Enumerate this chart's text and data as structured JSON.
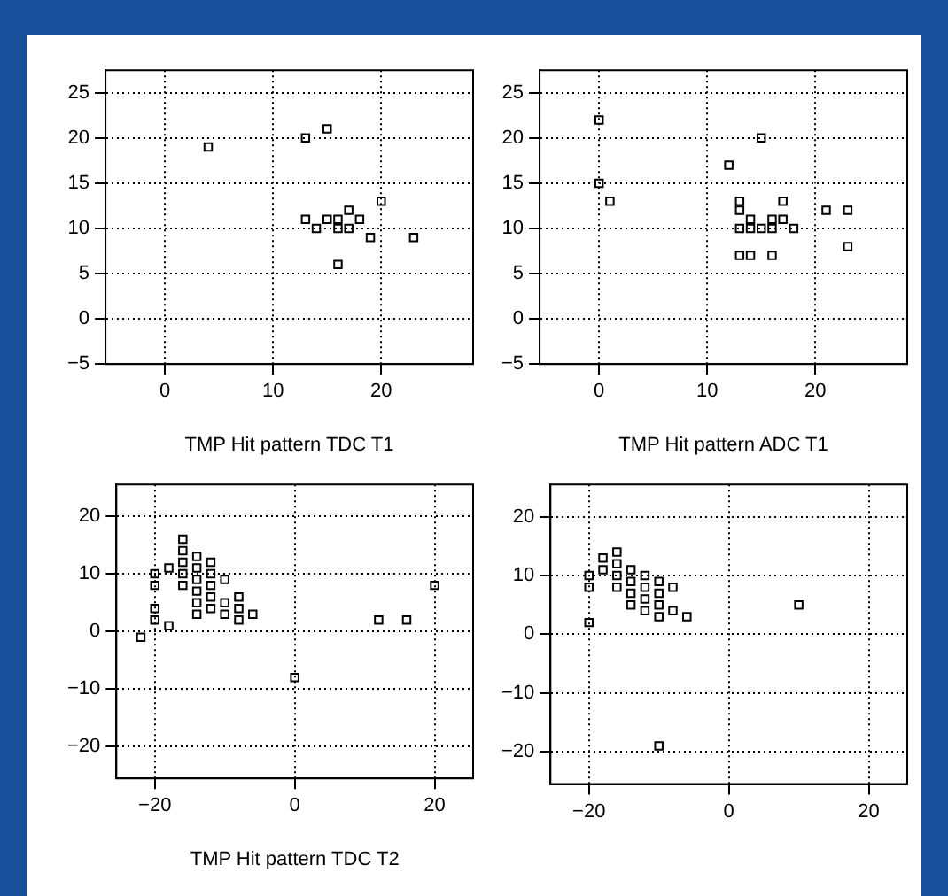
{
  "chart_data": [
    {
      "type": "scatter",
      "xlabel": "TMP Hit pattern TDC T1",
      "xlim": [
        -5.5,
        28.5
      ],
      "ylim": [
        -5,
        27.5
      ],
      "xticks": [
        0,
        10,
        20
      ],
      "yticks": [
        -5,
        0,
        5,
        10,
        15,
        20,
        25
      ],
      "grid": true,
      "line_style": "dotted",
      "marker": "square",
      "legend": false,
      "series": [
        {
          "color": "#000000",
          "x": [
            4,
            13,
            15,
            20,
            13,
            14,
            15,
            16,
            16,
            17,
            17,
            18,
            19,
            23,
            16
          ],
          "values": [
            19,
            20,
            21,
            13,
            11,
            10,
            11,
            11,
            10,
            12,
            10,
            11,
            9,
            9,
            6
          ]
        }
      ]
    },
    {
      "type": "scatter",
      "xlabel": "TMP Hit pattern ADC T1",
      "xlim": [
        -5.5,
        28.5
      ],
      "ylim": [
        -5,
        27.5
      ],
      "xticks": [
        0,
        10,
        20
      ],
      "yticks": [
        -5,
        0,
        5,
        10,
        15,
        20,
        25
      ],
      "grid": true,
      "line_style": "dotted",
      "marker": "square",
      "legend": false,
      "series": [
        {
          "color": "#000000",
          "x": [
            0,
            0,
            1,
            15,
            12,
            13,
            13,
            13,
            14,
            14,
            15,
            16,
            16,
            17,
            17,
            18,
            13,
            14,
            16,
            21,
            23,
            23
          ],
          "values": [
            22,
            15,
            13,
            20,
            17,
            13,
            12,
            10,
            11,
            10,
            10,
            10,
            11,
            13,
            11,
            10,
            7,
            7,
            7,
            12,
            12,
            8
          ]
        }
      ]
    },
    {
      "type": "scatter",
      "xlabel": "TMP Hit pattern TDC T2",
      "xlim": [
        -25.5,
        25.5
      ],
      "ylim": [
        -25.5,
        25.5
      ],
      "xticks": [
        -20,
        0,
        20
      ],
      "yticks": [
        -20,
        -10,
        0,
        10,
        20
      ],
      "grid": true,
      "line_style": "dotted",
      "marker": "square",
      "legend": false,
      "series": [
        {
          "color": "#000000",
          "x": [
            -22,
            -20,
            -20,
            -20,
            -20,
            -18,
            -18,
            -16,
            -16,
            -16,
            -16,
            -16,
            -14,
            -14,
            -14,
            -14,
            -14,
            -14,
            -12,
            -12,
            -12,
            -12,
            -12,
            -10,
            -10,
            -10,
            -8,
            -8,
            -8,
            -6,
            0,
            12,
            16,
            20
          ],
          "values": [
            -1,
            10,
            8,
            4,
            2,
            1,
            11,
            16,
            14,
            12,
            10,
            8,
            13,
            11,
            9,
            7,
            5,
            3,
            12,
            10,
            8,
            6,
            4,
            9,
            5,
            3,
            6,
            4,
            2,
            3,
            -8,
            2,
            2,
            8
          ]
        }
      ]
    },
    {
      "type": "scatter",
      "xlim": [
        -25.5,
        25.5
      ],
      "ylim": [
        -25.5,
        25.5
      ],
      "xticks": [
        -20,
        0,
        20
      ],
      "yticks": [
        -20,
        -10,
        0,
        10,
        20
      ],
      "grid": true,
      "line_style": "dotted",
      "marker": "square",
      "legend": false,
      "series": [
        {
          "color": "#000000",
          "x": [
            -20,
            -20,
            -20,
            -18,
            -18,
            -16,
            -16,
            -16,
            -16,
            -14,
            -14,
            -14,
            -14,
            -12,
            -12,
            -12,
            -12,
            -10,
            -10,
            -10,
            -10,
            -8,
            -8,
            -6,
            10,
            -10
          ],
          "values": [
            10,
            8,
            2,
            13,
            11,
            14,
            12,
            10,
            8,
            11,
            9,
            7,
            5,
            10,
            8,
            6,
            4,
            9,
            7,
            5,
            3,
            8,
            4,
            3,
            5,
            -19
          ]
        }
      ]
    }
  ]
}
